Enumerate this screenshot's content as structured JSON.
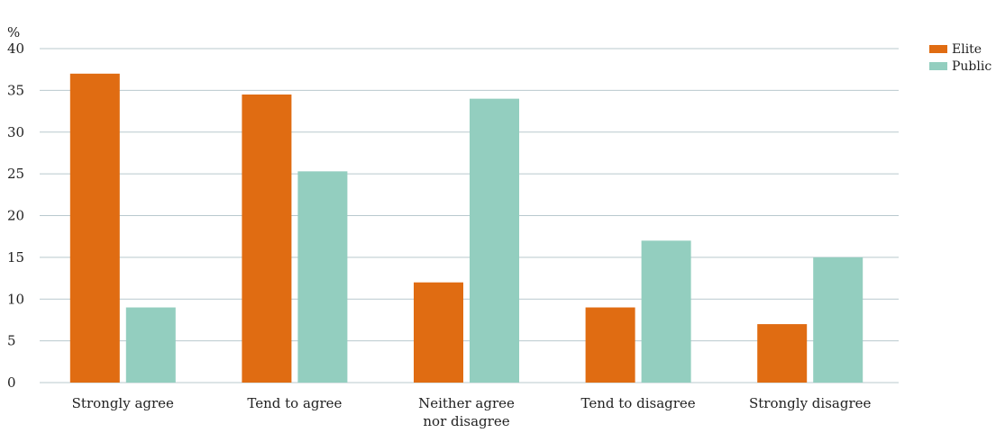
{
  "chart_data": {
    "type": "bar",
    "unit_label": "%",
    "categories": [
      [
        "Strongly agree"
      ],
      [
        "Tend to agree"
      ],
      [
        "Neither agree",
        "nor disagree"
      ],
      [
        "Tend to disagree"
      ],
      [
        "Strongly disagree"
      ]
    ],
    "series": [
      {
        "name": "Elite",
        "color": "#e06c12",
        "values": [
          37,
          34.5,
          12,
          9,
          7
        ]
      },
      {
        "name": "Public",
        "color": "#93cebf",
        "values": [
          9,
          25.3,
          34,
          17,
          15
        ]
      }
    ],
    "yticks": [
      0,
      5,
      10,
      15,
      20,
      25,
      30,
      35,
      40
    ],
    "ylim": [
      0,
      40
    ],
    "grid": true,
    "legend_position": "top-right",
    "colors": {
      "grid": "#b9c9ce",
      "text": "#222222"
    }
  }
}
